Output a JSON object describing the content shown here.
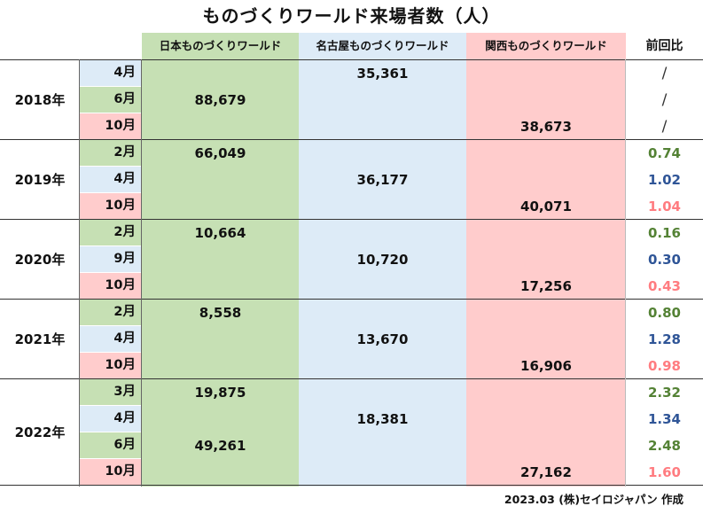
{
  "title": "ものづくりワールド来場者数（人）",
  "headers": [
    "日本ものづくりワールド",
    "名古屋ものづくりワールド",
    "関西ものづくりワールド",
    "前回比"
  ],
  "colors": {
    "green": "#c6e0b4",
    "blue": "#ddebf7",
    "pink": "#ffcccc",
    "ratio_green": "#548235",
    "ratio_blue": "#2f5597",
    "ratio_pink": "#ff7c80",
    "ratio_dark": "#333333"
  },
  "years": [
    {
      "label": "2018年",
      "months": [
        "4月",
        "6月",
        "10月"
      ]
    },
    {
      "label": "2019年",
      "months": [
        "2月",
        "4月",
        "10月"
      ]
    },
    {
      "label": "2020年",
      "months": [
        "2月",
        "9月",
        "10月"
      ]
    },
    {
      "label": "2021年",
      "months": [
        "2月",
        "4月",
        "10月"
      ]
    },
    {
      "label": "2022年",
      "months": [
        "3月",
        "4月",
        "6月",
        "10月"
      ]
    }
  ],
  "footer": "2023.03 (株)セイロジャパン 作成",
  "chart_data": {
    "type": "table",
    "columns": [
      "日本ものづくりワールド",
      "名古屋ものづくりワールド",
      "関西ものづくりワールド",
      "前回比"
    ],
    "rows": [
      {
        "year": "2018年",
        "month": "4月",
        "event": "nagoya",
        "value": "35,361",
        "ratio": "/"
      },
      {
        "year": "2018年",
        "month": "6月",
        "event": "nihon",
        "value": "88,679",
        "ratio": "/"
      },
      {
        "year": "2018年",
        "month": "10月",
        "event": "kansai",
        "value": "38,673",
        "ratio": "/"
      },
      {
        "year": "2019年",
        "month": "2月",
        "event": "nihon",
        "value": "66,049",
        "ratio": "0.74"
      },
      {
        "year": "2019年",
        "month": "4月",
        "event": "nagoya",
        "value": "36,177",
        "ratio": "1.02"
      },
      {
        "year": "2019年",
        "month": "10月",
        "event": "kansai",
        "value": "40,071",
        "ratio": "1.04"
      },
      {
        "year": "2020年",
        "month": "2月",
        "event": "nihon",
        "value": "10,664",
        "ratio": "0.16"
      },
      {
        "year": "2020年",
        "month": "9月",
        "event": "nagoya",
        "value": "10,720",
        "ratio": "0.30"
      },
      {
        "year": "2020年",
        "month": "10月",
        "event": "kansai",
        "value": "17,256",
        "ratio": "0.43"
      },
      {
        "year": "2021年",
        "month": "2月",
        "event": "nihon",
        "value": "8,558",
        "ratio": "0.80"
      },
      {
        "year": "2021年",
        "month": "4月",
        "event": "nagoya",
        "value": "13,670",
        "ratio": "1.28"
      },
      {
        "year": "2021年",
        "month": "10月",
        "event": "kansai",
        "value": "16,906",
        "ratio": "0.98"
      },
      {
        "year": "2022年",
        "month": "3月",
        "event": "nihon",
        "value": "19,875",
        "ratio": "2.32"
      },
      {
        "year": "2022年",
        "month": "4月",
        "event": "nagoya",
        "value": "18,381",
        "ratio": "1.34"
      },
      {
        "year": "2022年",
        "month": "6月",
        "event": "nihon",
        "value": "49,261",
        "ratio": "2.48"
      },
      {
        "year": "2022年",
        "month": "10月",
        "event": "kansai",
        "value": "27,162",
        "ratio": "1.60"
      }
    ]
  }
}
